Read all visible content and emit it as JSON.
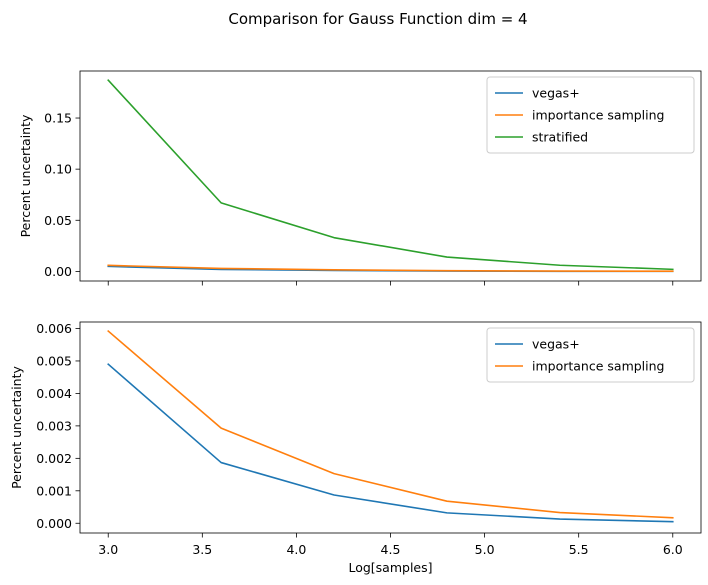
{
  "figure": {
    "suptitle": "Comparison for Gauss Function dim = 4"
  },
  "chart_data": [
    {
      "type": "line",
      "title": "",
      "xlabel": "",
      "ylabel": "Percent uncertainty",
      "xlim": [
        2.85,
        6.15
      ],
      "ylim": [
        -0.0094,
        0.196
      ],
      "x_ticks": [
        "3.0",
        "3.5",
        "4.0",
        "4.5",
        "5.0",
        "5.5",
        "6.0"
      ],
      "x_tick_labels_visible": false,
      "y_ticks": [
        "0.00",
        "0.05",
        "0.10",
        "0.15"
      ],
      "grid": false,
      "legend_placement": "top-right",
      "x": [
        3.0,
        3.6,
        4.2,
        4.8,
        5.4,
        6.0
      ],
      "series": [
        {
          "name": "vegas+",
          "color": "#1f77b4",
          "values": [
            0.0049,
            0.0019,
            0.0009,
            0.0003,
            0.0001,
            0.0001
          ]
        },
        {
          "name": "importance sampling",
          "color": "#ff7f0e",
          "values": [
            0.0059,
            0.0029,
            0.0015,
            0.0007,
            0.0003,
            0.0002
          ]
        },
        {
          "name": "stratified",
          "color": "#2ca02c",
          "values": [
            0.187,
            0.067,
            0.033,
            0.014,
            0.006,
            0.002
          ]
        }
      ]
    },
    {
      "type": "line",
      "title": "",
      "xlabel": "Log[samples]",
      "ylabel": "Percent uncertainty",
      "xlim": [
        2.85,
        6.15
      ],
      "ylim": [
        -0.0003,
        0.0062
      ],
      "x_ticks": [
        "3.0",
        "3.5",
        "4.0",
        "4.5",
        "5.0",
        "5.5",
        "6.0"
      ],
      "x_tick_labels_visible": true,
      "y_ticks": [
        "0.000",
        "0.001",
        "0.002",
        "0.003",
        "0.004",
        "0.005",
        "0.006"
      ],
      "grid": false,
      "legend_placement": "top-right",
      "x": [
        3.0,
        3.6,
        4.2,
        4.8,
        5.4,
        6.0
      ],
      "series": [
        {
          "name": "vegas+",
          "color": "#1f77b4",
          "values": [
            0.0049,
            0.00187,
            0.00087,
            0.00032,
            0.00013,
            5e-05
          ]
        },
        {
          "name": "importance sampling",
          "color": "#ff7f0e",
          "values": [
            0.00592,
            0.00293,
            0.00153,
            0.00068,
            0.00033,
            0.00017
          ]
        }
      ]
    }
  ]
}
